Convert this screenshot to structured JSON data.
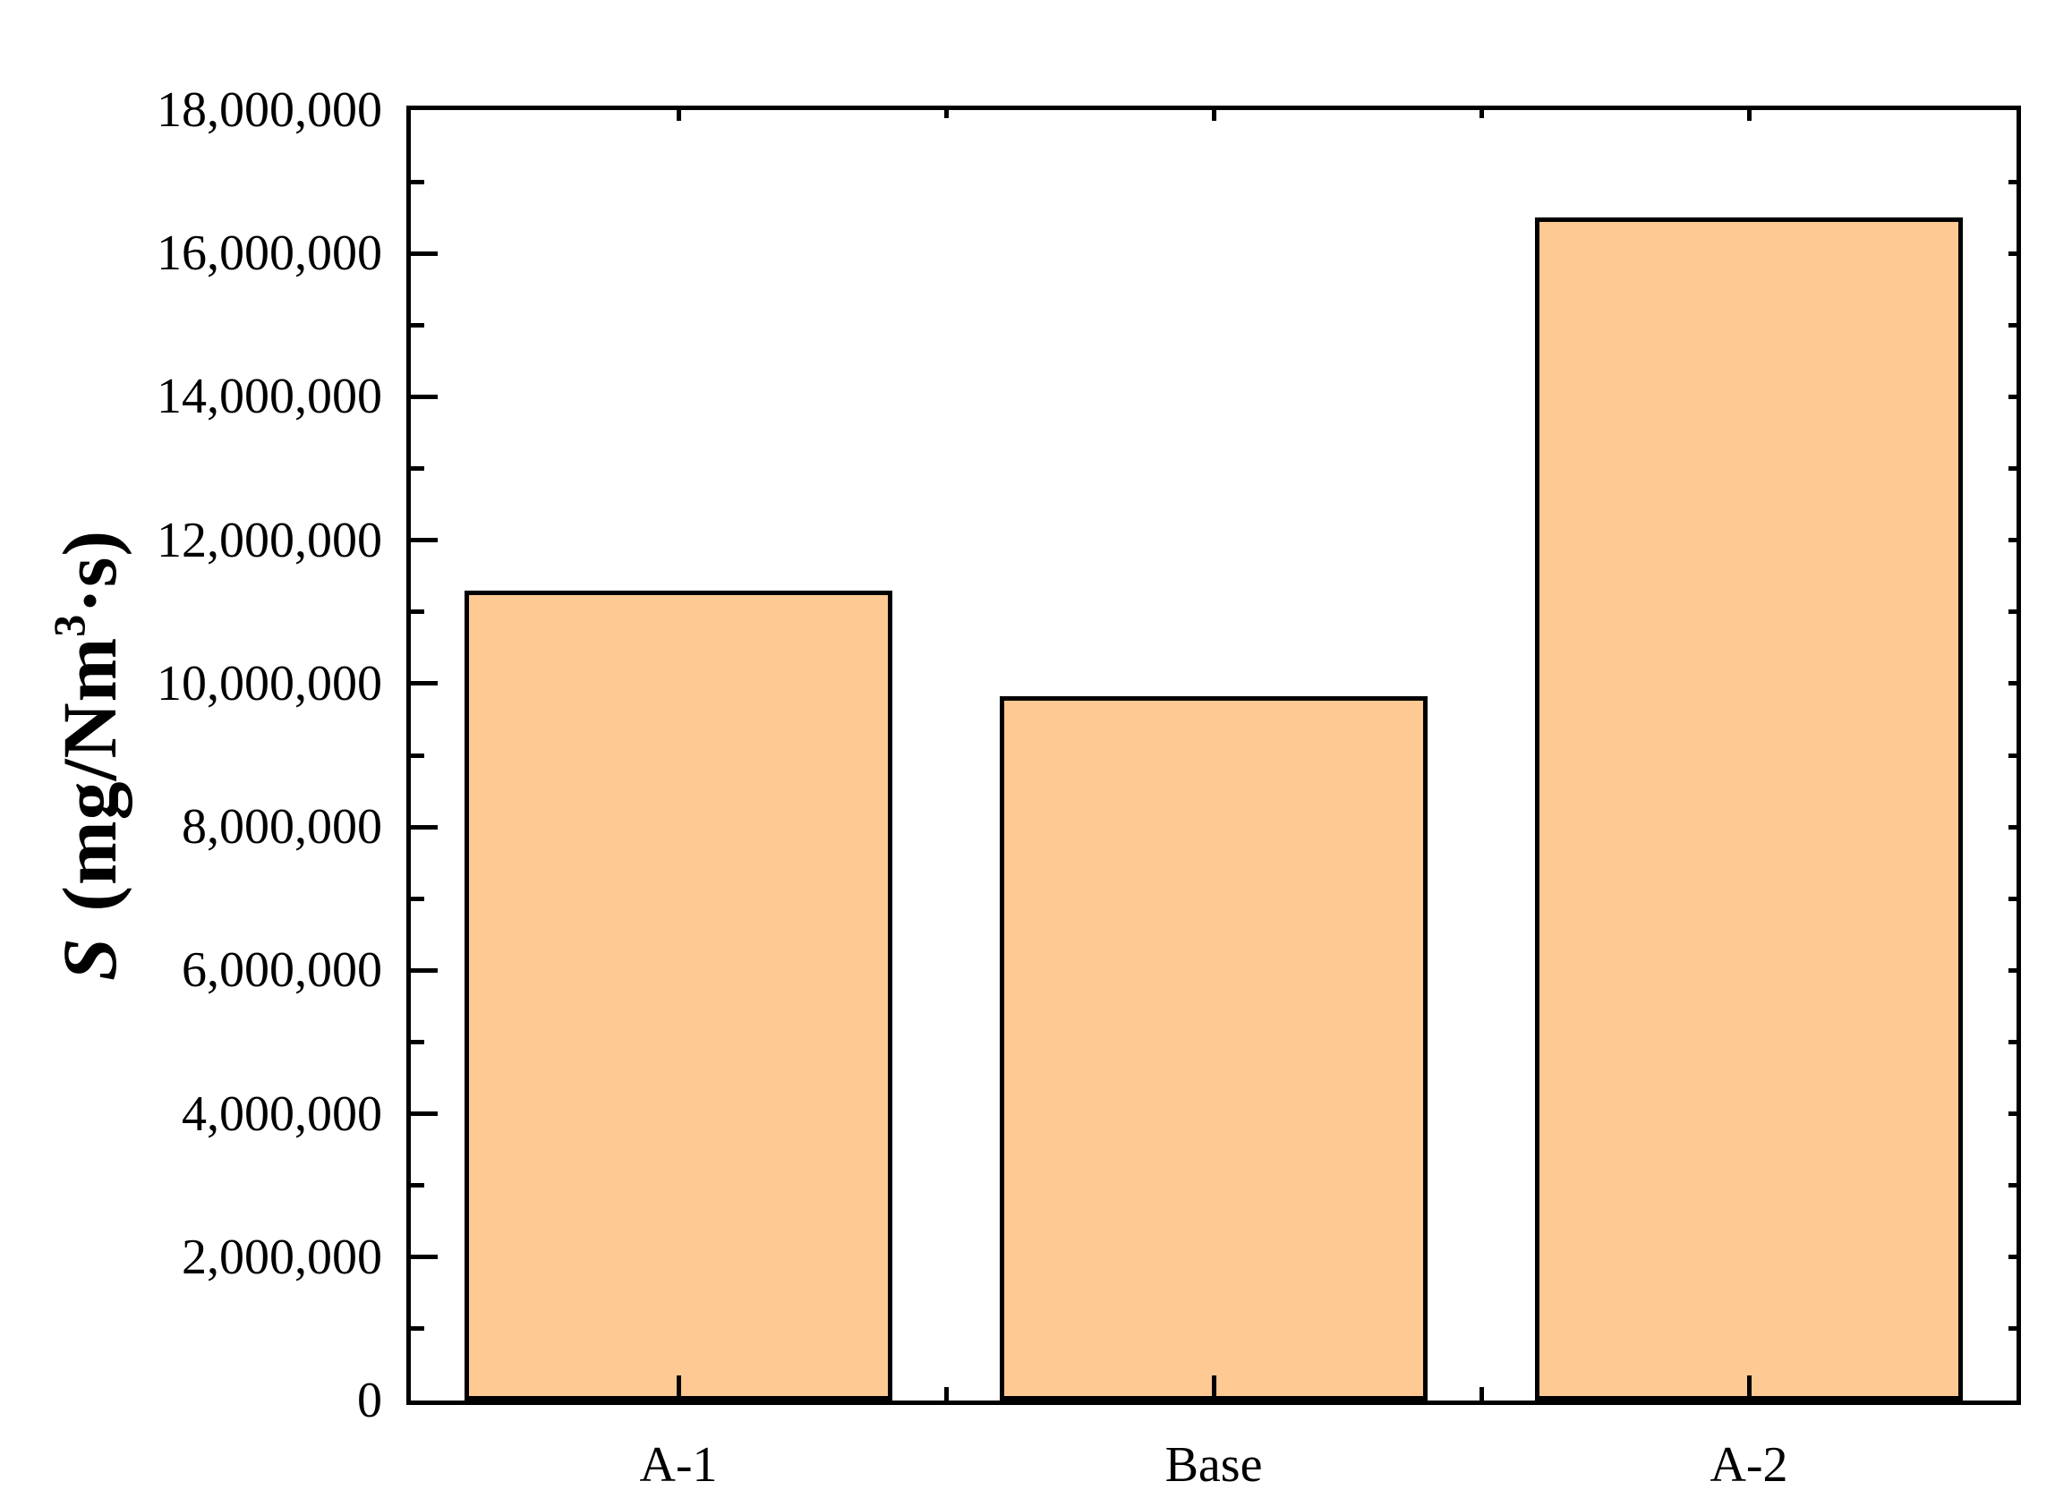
{
  "chart_data": {
    "type": "bar",
    "categories": [
      "A-1",
      "Base",
      "A-2"
    ],
    "values": [
      11300000,
      9830000,
      16500000
    ],
    "title": "",
    "xlabel": "",
    "ylabel": "S (mg/Nm³·s)",
    "ylabel_parts": {
      "symbol": "S",
      "unit_open": " (mg/Nm",
      "superscript": "3",
      "unit_close": "·s)"
    },
    "ylim": [
      0,
      18000000
    ],
    "y_major_step": 2000000,
    "y_minor_step": 1000000,
    "y_tick_labels": [
      "0",
      "2,000,000",
      "4,000,000",
      "6,000,000",
      "8,000,000",
      "10,000,000",
      "12,000,000",
      "14,000,000",
      "16,000,000",
      "18,000,000"
    ],
    "grid": false,
    "legend": null,
    "bar_width_fraction": 0.8,
    "colors": {
      "bar_fill": "#FEC993",
      "bar_border": "#000000",
      "axis": "#000000",
      "background": "#FFFFFF",
      "text": "#000000"
    }
  }
}
